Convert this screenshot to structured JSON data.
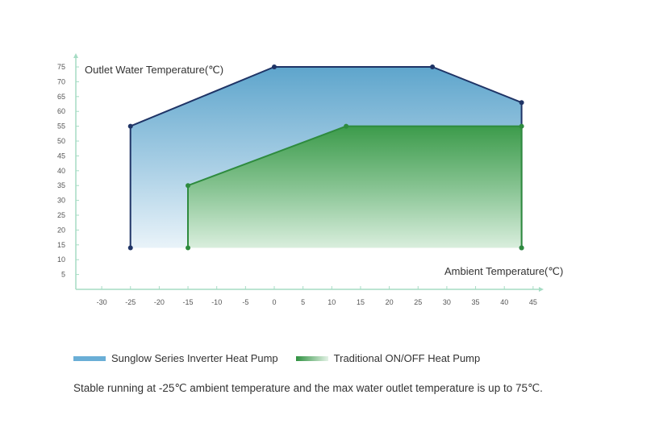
{
  "chart_data": {
    "type": "area",
    "ylabel": "Outlet Water Temperature(℃)",
    "xlabel": "Ambient Temperature(℃)",
    "x_ticks": [
      -30,
      -25,
      -20,
      -15,
      -10,
      -5,
      0,
      5,
      10,
      15,
      20,
      25,
      30,
      35,
      40,
      45
    ],
    "y_ticks": [
      5,
      10,
      15,
      20,
      25,
      30,
      35,
      40,
      45,
      50,
      55,
      60,
      65,
      70,
      75
    ],
    "xlim": [
      -34.5,
      46
    ],
    "ylim": [
      0,
      78
    ],
    "grid": false,
    "legend_position": "bottom-left",
    "series": [
      {
        "name": "Sunglow Series Inverter Heat Pump",
        "color": "#2e86b8",
        "line_color": "#1f3466",
        "points": [
          [
            -25,
            14
          ],
          [
            -25,
            55
          ],
          [
            0,
            75
          ],
          [
            27.5,
            75
          ],
          [
            43,
            63
          ],
          [
            43,
            14
          ]
        ]
      },
      {
        "name": "Traditional ON/OFF Heat Pump",
        "color": "#3a9a4a",
        "line_color": "#2e8b3e",
        "points": [
          [
            -15,
            14
          ],
          [
            -15,
            35
          ],
          [
            12.5,
            55
          ],
          [
            43,
            55
          ],
          [
            43,
            14
          ]
        ]
      }
    ]
  },
  "caption": "Stable running at -25℃ ambient temperature and the max water outlet temperature is up to 75℃."
}
